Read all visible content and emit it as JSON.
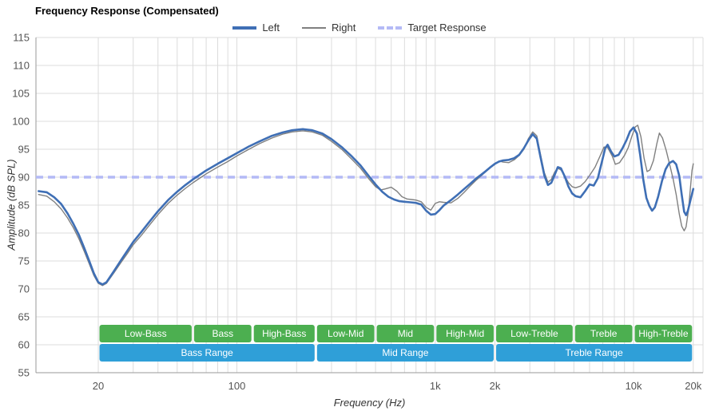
{
  "chart_data": {
    "type": "line",
    "title": "Frequency Response (Compensated)",
    "xlabel": "Frequency (Hz)",
    "ylabel": "Amplitude (dB SPL)",
    "x_scale": "log",
    "xlim": [
      9.7,
      22400
    ],
    "ylim": [
      55,
      115
    ],
    "grid": true,
    "legend_position": "top-center",
    "colors": {
      "grid": "#dcdcdc",
      "axis": "#9a9a9a",
      "tick_text": "#555555"
    },
    "y_ticks": [
      55,
      60,
      65,
      70,
      75,
      80,
      85,
      90,
      95,
      100,
      105,
      110,
      115
    ],
    "x_ticks": [
      {
        "value": 20,
        "label": "20"
      },
      {
        "value": 100,
        "label": "100"
      },
      {
        "value": 1000,
        "label": "1k"
      },
      {
        "value": 2000,
        "label": "2k"
      },
      {
        "value": 10000,
        "label": "10k"
      },
      {
        "value": 20000,
        "label": "20k"
      }
    ],
    "grid_x": [
      20,
      30,
      40,
      50,
      60,
      70,
      80,
      90,
      100,
      200,
      300,
      400,
      500,
      600,
      700,
      800,
      900,
      1000,
      2000,
      3000,
      4000,
      5000,
      6000,
      7000,
      8000,
      9000,
      10000,
      20000
    ],
    "target": {
      "label": "Target Response",
      "level": 90,
      "color": "#b4baf6"
    },
    "series": [
      {
        "name": "Left",
        "color": "#3f6fb5",
        "width": 2.6,
        "points": [
          [
            10,
            87.5
          ],
          [
            11,
            87.3
          ],
          [
            12,
            86.4
          ],
          [
            13,
            85.2
          ],
          [
            14,
            83.5
          ],
          [
            15,
            81.6
          ],
          [
            16,
            79.6
          ],
          [
            17,
            77.3
          ],
          [
            18,
            75.0
          ],
          [
            19,
            72.8
          ],
          [
            20,
            71.2
          ],
          [
            21,
            70.8
          ],
          [
            22,
            71.2
          ],
          [
            24,
            73.2
          ],
          [
            26,
            75.1
          ],
          [
            28,
            76.8
          ],
          [
            30,
            78.4
          ],
          [
            33,
            80.2
          ],
          [
            36,
            81.9
          ],
          [
            40,
            83.9
          ],
          [
            45,
            85.9
          ],
          [
            50,
            87.4
          ],
          [
            55,
            88.6
          ],
          [
            60,
            89.6
          ],
          [
            70,
            91.2
          ],
          [
            80,
            92.4
          ],
          [
            90,
            93.4
          ],
          [
            100,
            94.3
          ],
          [
            115,
            95.5
          ],
          [
            130,
            96.4
          ],
          [
            150,
            97.4
          ],
          [
            170,
            98.0
          ],
          [
            190,
            98.4
          ],
          [
            215,
            98.6
          ],
          [
            240,
            98.4
          ],
          [
            270,
            97.8
          ],
          [
            300,
            96.8
          ],
          [
            340,
            95.3
          ],
          [
            380,
            93.7
          ],
          [
            420,
            92.1
          ],
          [
            460,
            90.3
          ],
          [
            500,
            88.7
          ],
          [
            540,
            87.4
          ],
          [
            580,
            86.5
          ],
          [
            620,
            86.0
          ],
          [
            660,
            85.7
          ],
          [
            700,
            85.6
          ],
          [
            750,
            85.5
          ],
          [
            800,
            85.4
          ],
          [
            850,
            85.1
          ],
          [
            900,
            84.0
          ],
          [
            950,
            83.3
          ],
          [
            1000,
            83.4
          ],
          [
            1050,
            84.1
          ],
          [
            1100,
            84.9
          ],
          [
            1200,
            85.9
          ],
          [
            1300,
            86.9
          ],
          [
            1400,
            87.9
          ],
          [
            1500,
            88.8
          ],
          [
            1600,
            89.7
          ],
          [
            1700,
            90.4
          ],
          [
            1800,
            91.1
          ],
          [
            1900,
            91.8
          ],
          [
            2000,
            92.4
          ],
          [
            2100,
            92.8
          ],
          [
            2200,
            93.0
          ],
          [
            2350,
            93.1
          ],
          [
            2500,
            93.4
          ],
          [
            2650,
            94.0
          ],
          [
            2800,
            95.2
          ],
          [
            2950,
            96.6
          ],
          [
            3100,
            97.7
          ],
          [
            3250,
            96.9
          ],
          [
            3400,
            93.5
          ],
          [
            3550,
            90.3
          ],
          [
            3700,
            88.6
          ],
          [
            3850,
            89.0
          ],
          [
            4000,
            90.4
          ],
          [
            4150,
            91.8
          ],
          [
            4300,
            91.6
          ],
          [
            4500,
            90.1
          ],
          [
            4700,
            88.3
          ],
          [
            4900,
            87.1
          ],
          [
            5100,
            86.6
          ],
          [
            5400,
            86.4
          ],
          [
            5700,
            87.5
          ],
          [
            6000,
            88.7
          ],
          [
            6300,
            88.5
          ],
          [
            6600,
            89.8
          ],
          [
            6900,
            92.5
          ],
          [
            7200,
            95.2
          ],
          [
            7400,
            95.8
          ],
          [
            7700,
            94.6
          ],
          [
            8000,
            93.7
          ],
          [
            8400,
            94.0
          ],
          [
            8800,
            95.2
          ],
          [
            9200,
            96.6
          ],
          [
            9600,
            98.2
          ],
          [
            10000,
            98.9
          ],
          [
            10400,
            97.8
          ],
          [
            10800,
            94.0
          ],
          [
            11200,
            89.5
          ],
          [
            11600,
            86.3
          ],
          [
            12000,
            84.9
          ],
          [
            12400,
            84.0
          ],
          [
            12800,
            84.6
          ],
          [
            13300,
            86.5
          ],
          [
            13900,
            89.3
          ],
          [
            14500,
            91.4
          ],
          [
            15100,
            92.5
          ],
          [
            15800,
            92.9
          ],
          [
            16400,
            92.3
          ],
          [
            17000,
            90.2
          ],
          [
            17500,
            86.8
          ],
          [
            18000,
            83.8
          ],
          [
            18400,
            83.2
          ],
          [
            18800,
            84.0
          ],
          [
            19400,
            86.0
          ],
          [
            20000,
            87.9
          ]
        ]
      },
      {
        "name": "Right",
        "color": "#808080",
        "width": 1.4,
        "points": [
          [
            10,
            86.9
          ],
          [
            11,
            86.6
          ],
          [
            12,
            85.6
          ],
          [
            13,
            84.3
          ],
          [
            14,
            82.7
          ],
          [
            15,
            80.9
          ],
          [
            16,
            78.9
          ],
          [
            17,
            76.7
          ],
          [
            18,
            74.5
          ],
          [
            19,
            72.4
          ],
          [
            20,
            71.0
          ],
          [
            21,
            70.6
          ],
          [
            22,
            71.0
          ],
          [
            24,
            72.9
          ],
          [
            26,
            74.7
          ],
          [
            28,
            76.3
          ],
          [
            30,
            77.9
          ],
          [
            33,
            79.6
          ],
          [
            36,
            81.3
          ],
          [
            40,
            83.3
          ],
          [
            45,
            85.3
          ],
          [
            50,
            86.8
          ],
          [
            55,
            88.0
          ],
          [
            60,
            89.0
          ],
          [
            70,
            90.6
          ],
          [
            80,
            91.8
          ],
          [
            90,
            92.8
          ],
          [
            100,
            93.8
          ],
          [
            115,
            95.0
          ],
          [
            130,
            96.0
          ],
          [
            150,
            97.0
          ],
          [
            170,
            97.7
          ],
          [
            190,
            98.1
          ],
          [
            215,
            98.3
          ],
          [
            240,
            98.1
          ],
          [
            270,
            97.5
          ],
          [
            300,
            96.4
          ],
          [
            340,
            94.9
          ],
          [
            380,
            93.2
          ],
          [
            420,
            91.6
          ],
          [
            460,
            89.8
          ],
          [
            500,
            88.3
          ],
          [
            530,
            87.7
          ],
          [
            560,
            87.9
          ],
          [
            600,
            88.2
          ],
          [
            640,
            87.5
          ],
          [
            680,
            86.5
          ],
          [
            720,
            86.1
          ],
          [
            760,
            86.0
          ],
          [
            800,
            85.9
          ],
          [
            850,
            85.6
          ],
          [
            900,
            84.6
          ],
          [
            950,
            84.1
          ],
          [
            1000,
            85.3
          ],
          [
            1050,
            85.6
          ],
          [
            1100,
            85.5
          ],
          [
            1200,
            85.4
          ],
          [
            1300,
            86.2
          ],
          [
            1400,
            87.3
          ],
          [
            1500,
            88.4
          ],
          [
            1600,
            89.4
          ],
          [
            1700,
            90.2
          ],
          [
            1800,
            91.0
          ],
          [
            1900,
            91.7
          ],
          [
            2000,
            92.3
          ],
          [
            2100,
            92.9
          ],
          [
            2200,
            92.7
          ],
          [
            2350,
            92.6
          ],
          [
            2500,
            93.1
          ],
          [
            2650,
            93.9
          ],
          [
            2800,
            95.0
          ],
          [
            2950,
            96.9
          ],
          [
            3100,
            98.1
          ],
          [
            3250,
            97.4
          ],
          [
            3400,
            94.0
          ],
          [
            3550,
            90.8
          ],
          [
            3700,
            89.1
          ],
          [
            3850,
            89.6
          ],
          [
            4000,
            90.9
          ],
          [
            4150,
            91.6
          ],
          [
            4300,
            91.3
          ],
          [
            4500,
            90.2
          ],
          [
            4700,
            89.0
          ],
          [
            4900,
            88.3
          ],
          [
            5100,
            88.1
          ],
          [
            5400,
            88.4
          ],
          [
            5700,
            89.2
          ],
          [
            6000,
            90.3
          ],
          [
            6400,
            91.8
          ],
          [
            6800,
            93.9
          ],
          [
            7100,
            95.4
          ],
          [
            7400,
            95.3
          ],
          [
            7800,
            93.8
          ],
          [
            8100,
            92.3
          ],
          [
            8500,
            92.6
          ],
          [
            9000,
            93.9
          ],
          [
            9400,
            95.3
          ],
          [
            9800,
            97.3
          ],
          [
            10200,
            99.0
          ],
          [
            10500,
            99.3
          ],
          [
            10900,
            97.2
          ],
          [
            11300,
            93.4
          ],
          [
            11700,
            91.0
          ],
          [
            12100,
            91.3
          ],
          [
            12600,
            93.0
          ],
          [
            13100,
            96.0
          ],
          [
            13500,
            97.9
          ],
          [
            14000,
            97.0
          ],
          [
            14600,
            94.8
          ],
          [
            15200,
            92.3
          ],
          [
            15800,
            89.8
          ],
          [
            16400,
            86.9
          ],
          [
            17000,
            83.4
          ],
          [
            17500,
            81.2
          ],
          [
            18000,
            80.4
          ],
          [
            18400,
            81.1
          ],
          [
            18900,
            84.0
          ],
          [
            19400,
            88.5
          ],
          [
            19700,
            91.2
          ],
          [
            20000,
            92.4
          ]
        ]
      }
    ],
    "bands": {
      "sub_color": "#4caf50",
      "main_color": "#2f9fd8",
      "sub": [
        {
          "label": "Low-Bass",
          "from": 20,
          "to": 60
        },
        {
          "label": "Bass",
          "from": 60,
          "to": 120
        },
        {
          "label": "High-Bass",
          "from": 120,
          "to": 250
        },
        {
          "label": "Low-Mid",
          "from": 250,
          "to": 500
        },
        {
          "label": "Mid",
          "from": 500,
          "to": 1000
        },
        {
          "label": "High-Mid",
          "from": 1000,
          "to": 2000
        },
        {
          "label": "Low-Treble",
          "from": 2000,
          "to": 5000
        },
        {
          "label": "Treble",
          "from": 5000,
          "to": 10000
        },
        {
          "label": "High-Treble",
          "from": 10000,
          "to": 20000
        }
      ],
      "main": [
        {
          "label": "Bass Range",
          "from": 20,
          "to": 250
        },
        {
          "label": "Mid Range",
          "from": 250,
          "to": 2000
        },
        {
          "label": "Treble Range",
          "from": 2000,
          "to": 20000
        }
      ]
    }
  }
}
